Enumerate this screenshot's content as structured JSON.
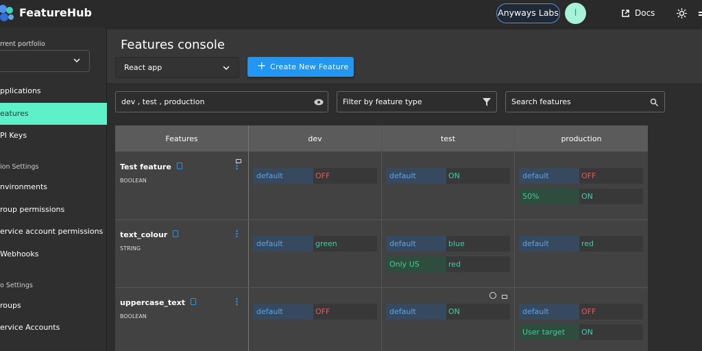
{
  "header": {
    "brand": "FeatureHub",
    "organization": "Anyways Labs",
    "avatar": "I",
    "docs": "Docs"
  },
  "sidebar": {
    "portfolio_label": "rrent portfolio",
    "items": [
      {
        "label": "pplications",
        "kind": "link"
      },
      {
        "label": "eatures",
        "kind": "selected"
      },
      {
        "label": "PI Keys",
        "kind": "link"
      },
      {
        "label": "ion Settings",
        "kind": "section"
      },
      {
        "label": "nvironments",
        "kind": "link"
      },
      {
        "label": "roup permissions",
        "kind": "link"
      },
      {
        "label": "ervice account permissions",
        "kind": "link"
      },
      {
        "label": "Webhooks",
        "kind": "link"
      },
      {
        "label": "o Settings",
        "kind": "section"
      },
      {
        "label": "roups",
        "kind": "link"
      },
      {
        "label": "ervice Accounts",
        "kind": "link"
      }
    ]
  },
  "main": {
    "title": "Features console",
    "application": "React app",
    "create_button": "Create New Feature",
    "environments_filter": "dev , test , production",
    "type_filter": "Filter by feature type",
    "search": "Search features"
  },
  "table": {
    "columns": [
      "Features",
      "dev",
      "test",
      "production"
    ],
    "rows": [
      {
        "name": "Test feature",
        "type": "BOOLEAN",
        "cells": [
          [
            {
              "key": "default",
              "value": "OFF"
            }
          ],
          [
            {
              "key": "default",
              "value": "ON"
            }
          ],
          [
            {
              "key": "default",
              "value": "OFF"
            },
            {
              "key": "50%",
              "value": "ON"
            }
          ]
        ]
      },
      {
        "name": "text_colour",
        "type": "STRING",
        "cells": [
          [
            {
              "key": "default",
              "value": "green"
            }
          ],
          [
            {
              "key": "default",
              "value": "blue"
            },
            {
              "key": "Only US",
              "value": "red"
            }
          ],
          [
            {
              "key": "default",
              "value": "red"
            }
          ]
        ]
      },
      {
        "name": "uppercase_text",
        "type": "BOOLEAN",
        "cells": [
          [
            {
              "key": "default",
              "value": "OFF"
            }
          ],
          [
            {
              "key": "default",
              "value": "ON"
            }
          ],
          [
            {
              "key": "default",
              "value": "OFF"
            },
            {
              "key": "User target",
              "value": "ON"
            }
          ]
        ]
      }
    ]
  }
}
